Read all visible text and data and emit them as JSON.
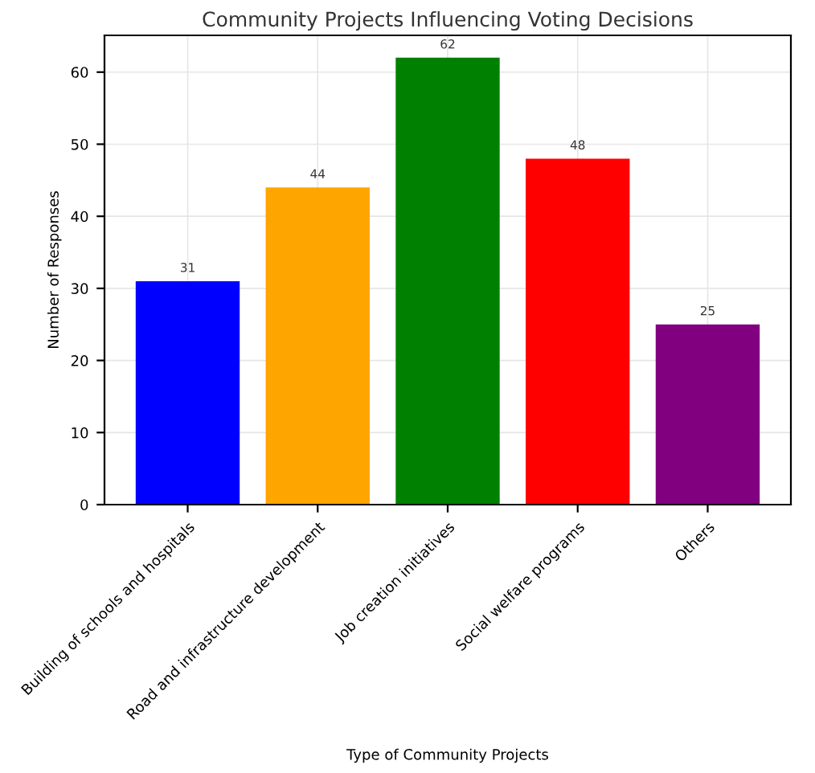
{
  "chart_data": {
    "type": "bar",
    "title": "Community Projects Influencing Voting Decisions",
    "xlabel": "Type of Community Projects",
    "ylabel": "Number of Responses",
    "categories": [
      "Building of schools and hospitals",
      "Road and infrastructure development",
      "Job creation initiatives",
      "Social welfare programs",
      "Others"
    ],
    "values": [
      31,
      44,
      62,
      48,
      25
    ],
    "colors": [
      "#0000ff",
      "#ffa500",
      "#008000",
      "#ff0000",
      "#800080"
    ],
    "ylim": [
      0,
      65.1
    ],
    "yticks": [
      0,
      10,
      20,
      30,
      40,
      50,
      60
    ],
    "grid": true,
    "data_labels": true
  }
}
